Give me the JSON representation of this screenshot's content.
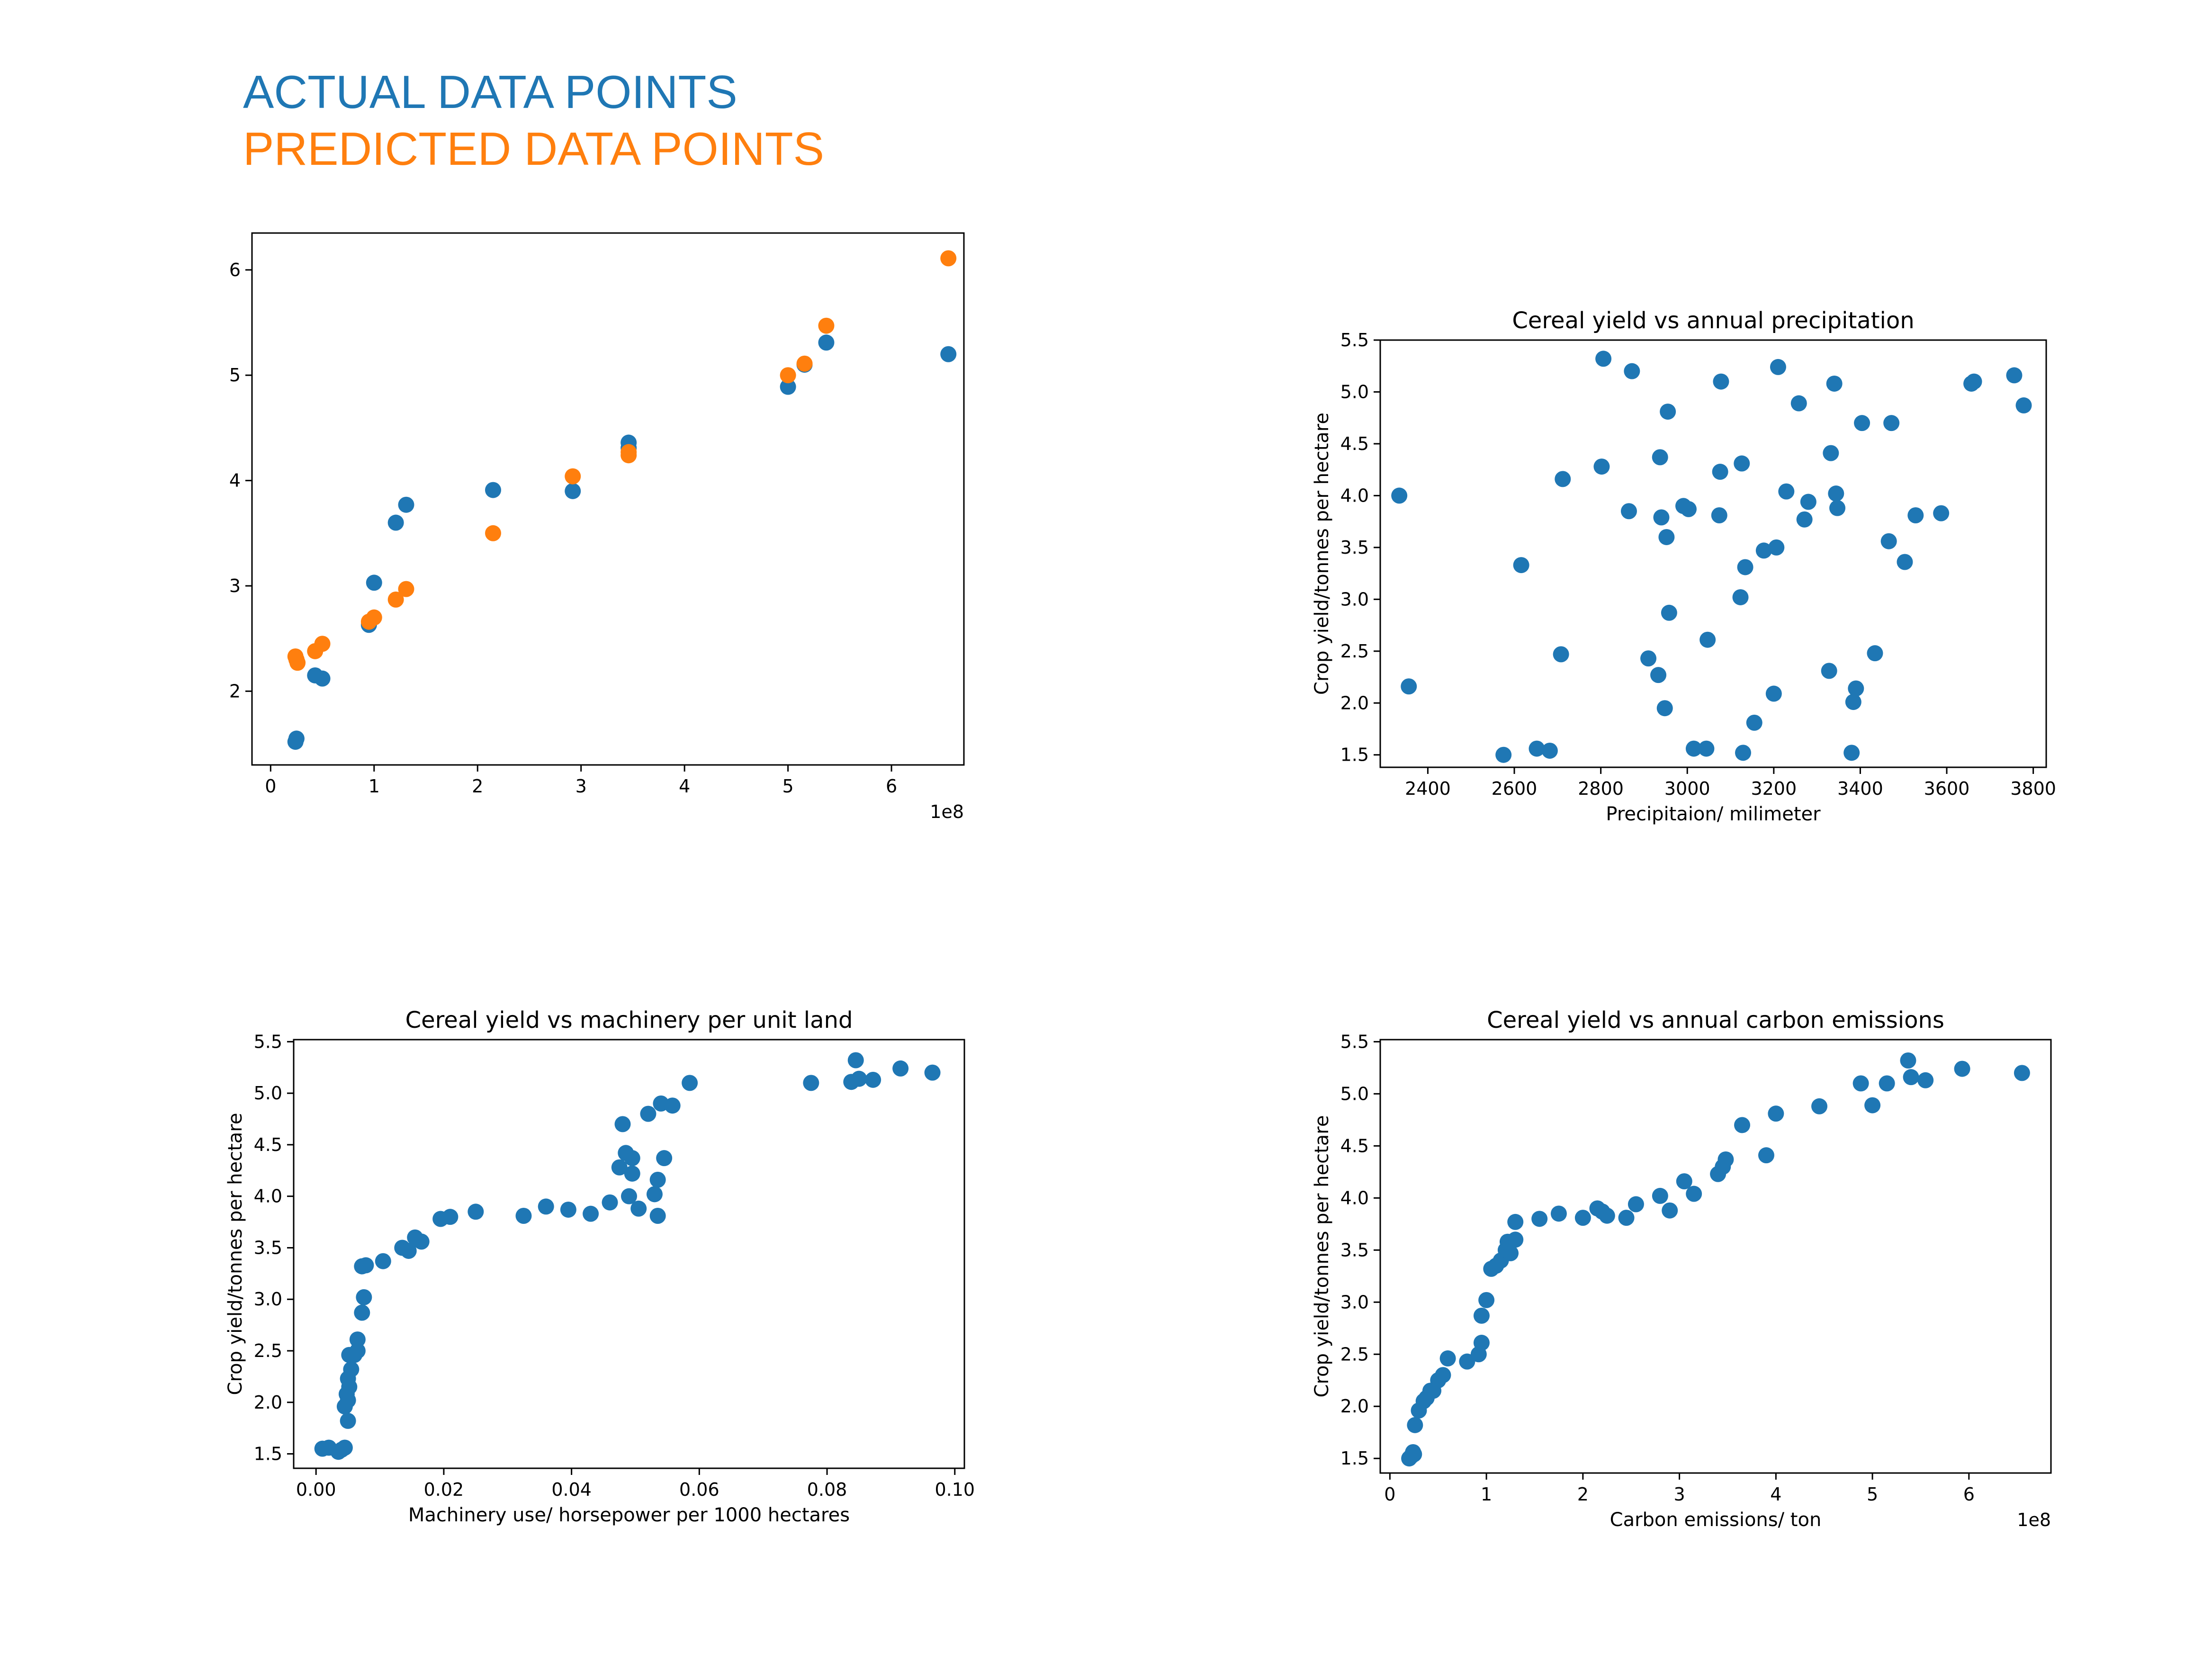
{
  "legend": {
    "actual_label": "ACTUAL DATA POINTS",
    "predicted_label": "PREDICTED DATA POINTS",
    "actual_color": "#1f77b4",
    "predicted_color": "#ff7f0e"
  },
  "chart_data": [
    {
      "type": "scatter",
      "title": "",
      "xlabel": "",
      "ylabel": "",
      "x_offset_text": "1e8",
      "xlim": [
        -0.18,
        6.7
      ],
      "ylim": [
        1.3,
        6.35
      ],
      "xticks": [
        0,
        1,
        2,
        3,
        4,
        5,
        6
      ],
      "yticks": [
        2,
        3,
        4,
        5,
        6
      ],
      "grid": false,
      "series": [
        {
          "name": "ACTUAL DATA POINTS",
          "color": "#1f77b4",
          "x": [
            0.24,
            0.25,
            0.43,
            0.5,
            0.95,
            1.0,
            1.21,
            1.31,
            2.15,
            2.92,
            3.46,
            3.46,
            5.0,
            5.16,
            5.37,
            6.55
          ],
          "y": [
            1.52,
            1.55,
            2.15,
            2.12,
            2.63,
            3.03,
            3.6,
            3.77,
            3.91,
            3.9,
            4.36,
            4.31,
            4.89,
            5.1,
            5.31,
            5.2
          ]
        },
        {
          "name": "PREDICTED DATA POINTS",
          "color": "#ff7f0e",
          "x": [
            0.24,
            0.25,
            0.26,
            0.43,
            0.5,
            0.95,
            1.0,
            1.21,
            1.31,
            2.15,
            2.92,
            3.46,
            3.46,
            5.0,
            5.16,
            5.37,
            6.55
          ],
          "y": [
            2.33,
            2.3,
            2.27,
            2.38,
            2.45,
            2.66,
            2.7,
            2.87,
            2.97,
            3.5,
            4.04,
            4.24,
            4.27,
            5.0,
            5.11,
            5.47,
            6.11
          ]
        }
      ]
    },
    {
      "type": "scatter",
      "title": "Cereal yield vs annual precipitation",
      "xlabel": "Precipitaion/ milimeter",
      "ylabel": "Crop yield/tonnes per hectare",
      "x_offset_text": "",
      "xlim": [
        2290,
        3830
      ],
      "ylim": [
        1.38,
        5.5
      ],
      "xticks": [
        2400,
        2600,
        2800,
        3000,
        3200,
        3400,
        3600,
        3800
      ],
      "yticks": [
        1.5,
        2.0,
        2.5,
        3.0,
        3.5,
        4.0,
        4.5,
        5.0,
        5.5
      ],
      "grid": false,
      "series": [
        {
          "name": "",
          "color": "#1f77b4",
          "x": [
            2334,
            2356,
            2575,
            2616,
            2652,
            2682,
            2708,
            2712,
            2802,
            2806,
            2865,
            2872,
            2910,
            2933,
            2937,
            2940,
            2948,
            2952,
            2955,
            2958,
            2991,
            3003,
            3015,
            3044,
            3047,
            3074,
            3076,
            3078,
            3123,
            3126,
            3129,
            3134,
            3155,
            3177,
            3200,
            3206,
            3210,
            3229,
            3258,
            3271,
            3280,
            3328,
            3332,
            3340,
            3344,
            3347,
            3380,
            3384,
            3390,
            3404,
            3434,
            3466,
            3472,
            3503,
            3528,
            3587,
            3657,
            3663,
            3756,
            3778
          ],
          "y": [
            4.0,
            2.16,
            1.5,
            3.33,
            1.56,
            1.54,
            2.47,
            4.16,
            4.28,
            5.32,
            3.85,
            5.2,
            2.43,
            2.27,
            4.37,
            3.79,
            1.95,
            3.6,
            4.81,
            2.87,
            3.9,
            3.87,
            1.56,
            1.56,
            2.61,
            3.81,
            4.23,
            5.1,
            3.02,
            4.31,
            1.52,
            3.31,
            1.81,
            3.47,
            2.09,
            3.5,
            5.24,
            4.04,
            4.89,
            3.77,
            3.94,
            2.31,
            4.41,
            5.08,
            4.02,
            3.88,
            1.52,
            2.01,
            2.14,
            4.7,
            2.48,
            3.56,
            4.7,
            3.36,
            3.81,
            3.83,
            5.08,
            5.1,
            5.16,
            4.87
          ]
        }
      ]
    },
    {
      "type": "scatter",
      "title": "Cereal yield vs machinery per unit land",
      "xlabel": "Machinery use/ horsepower per 1000 hectares",
      "ylabel": "Crop yield/tonnes per hectare",
      "x_offset_text": "",
      "xlim": [
        -0.0035,
        0.1015
      ],
      "ylim": [
        1.36,
        5.52
      ],
      "xticks": [
        0.0,
        0.02,
        0.04,
        0.06,
        0.08,
        0.1
      ],
      "yticks": [
        1.5,
        2.0,
        2.5,
        3.0,
        3.5,
        4.0,
        4.5,
        5.0,
        5.5
      ],
      "grid": false,
      "series": [
        {
          "name": "",
          "color": "#1f77b4",
          "x": [
            0.001,
            0.002,
            0.0035,
            0.004,
            0.0045,
            0.005,
            0.0045,
            0.005,
            0.0048,
            0.0052,
            0.005,
            0.0055,
            0.0052,
            0.006,
            0.0065,
            0.0065,
            0.0072,
            0.0075,
            0.0072,
            0.0078,
            0.0105,
            0.0135,
            0.0145,
            0.0155,
            0.0165,
            0.0195,
            0.021,
            0.025,
            0.0325,
            0.036,
            0.0395,
            0.043,
            0.046,
            0.0475,
            0.048,
            0.0485,
            0.049,
            0.0495,
            0.0505,
            0.0495,
            0.052,
            0.053,
            0.0535,
            0.0535,
            0.054,
            0.0545,
            0.0558,
            0.0585,
            0.0775,
            0.0838,
            0.0845,
            0.085,
            0.0872,
            0.0915,
            0.0965
          ],
          "y": [
            1.55,
            1.56,
            1.52,
            1.54,
            1.56,
            1.82,
            1.96,
            2.02,
            2.08,
            2.15,
            2.23,
            2.32,
            2.46,
            2.46,
            2.61,
            2.5,
            2.87,
            3.02,
            3.32,
            3.33,
            3.37,
            3.5,
            3.47,
            3.6,
            3.56,
            3.78,
            3.8,
            3.85,
            3.81,
            3.9,
            3.87,
            3.83,
            3.94,
            4.28,
            4.7,
            4.42,
            4.0,
            4.37,
            3.88,
            4.22,
            4.8,
            4.02,
            4.16,
            3.81,
            4.9,
            4.37,
            4.88,
            5.1,
            5.1,
            5.11,
            5.32,
            5.14,
            5.13,
            5.24,
            5.2
          ]
        }
      ]
    },
    {
      "type": "scatter",
      "title": "Cereal yield vs annual carbon emissions",
      "xlabel": "Carbon emissions/ ton",
      "ylabel": "Crop yield/tonnes per hectare",
      "x_offset_text": "1e8",
      "xlim": [
        -0.1,
        6.85
      ],
      "ylim": [
        1.36,
        5.52
      ],
      "xticks": [
        0,
        1,
        2,
        3,
        4,
        5,
        6
      ],
      "yticks": [
        1.5,
        2.0,
        2.5,
        3.0,
        3.5,
        4.0,
        4.5,
        5.0,
        5.5
      ],
      "grid": false,
      "series": [
        {
          "name": "",
          "color": "#1f77b4",
          "x": [
            0.2,
            0.22,
            0.25,
            0.24,
            0.26,
            0.3,
            0.35,
            0.38,
            0.42,
            0.45,
            0.5,
            0.55,
            0.6,
            0.8,
            0.92,
            0.95,
            0.95,
            1.0,
            1.05,
            1.1,
            1.15,
            1.2,
            1.22,
            1.25,
            1.3,
            1.3,
            1.55,
            1.75,
            2.0,
            2.15,
            2.2,
            2.25,
            2.45,
            2.55,
            2.8,
            2.9,
            3.05,
            3.15,
            3.4,
            3.45,
            3.48,
            3.65,
            3.9,
            4.0,
            4.45,
            4.88,
            5.0,
            5.15,
            5.37,
            5.4,
            5.55,
            5.93,
            6.55
          ],
          "y": [
            1.5,
            1.52,
            1.54,
            1.56,
            1.82,
            1.96,
            2.05,
            2.08,
            2.15,
            2.15,
            2.25,
            2.3,
            2.46,
            2.43,
            2.5,
            2.61,
            2.87,
            3.02,
            3.32,
            3.35,
            3.4,
            3.5,
            3.58,
            3.47,
            3.6,
            3.77,
            3.8,
            3.85,
            3.81,
            3.9,
            3.87,
            3.83,
            3.81,
            3.94,
            4.02,
            3.88,
            4.16,
            4.04,
            4.23,
            4.3,
            4.37,
            4.7,
            4.41,
            4.81,
            4.88,
            5.1,
            4.89,
            5.1,
            5.32,
            5.16,
            5.13,
            5.24,
            5.2
          ]
        }
      ]
    }
  ]
}
